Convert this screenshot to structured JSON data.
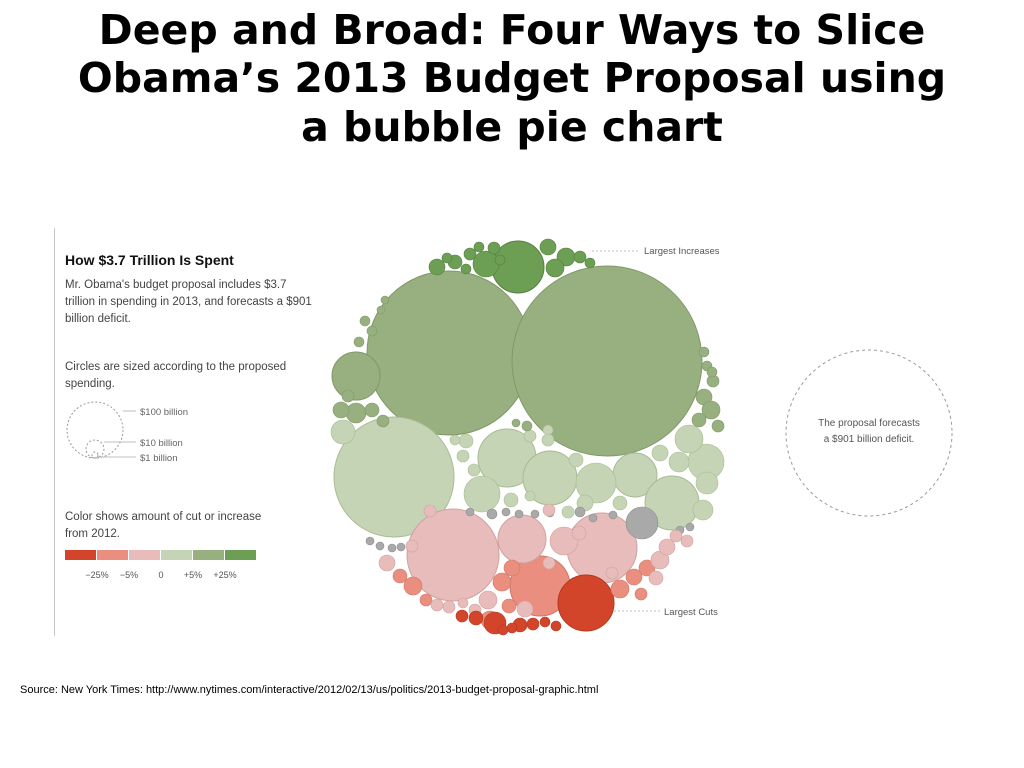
{
  "title_lines": [
    "Deep and Broad: Four Ways to Slice",
    "Obama’s 2013 Budget Proposal using",
    "a bubble pie chart"
  ],
  "panel": {
    "heading": "How $3.7 Trillion Is Spent",
    "intro": "Mr. Obama's budget proposal includes $3.7 trillion in spending in 2013, and forecasts a $901 billion deficit.",
    "size_note": "Circles are sized according to the proposed spending.",
    "size_legend": [
      "$100 billion",
      "$10 billion",
      "$1 billion"
    ],
    "color_note": "Color shows amount of cut or increase from 2012.",
    "color_legend": {
      "colors": [
        "#d2452b",
        "#ea8f7f",
        "#e7bcba",
        "#c5d4b4",
        "#98b07f",
        "#6c9e54"
      ],
      "ticks": [
        "−25%",
        "−5%",
        "0",
        "+5%",
        "+25%"
      ]
    }
  },
  "annotations": {
    "largest_increases": "Largest Increases",
    "largest_cuts": "Largest Cuts",
    "deficit": [
      "The proposal forecasts",
      "a $901 billion deficit."
    ]
  },
  "chart_data": {
    "type": "bubble",
    "title": "How $3.7 Trillion Is Spent",
    "total_spending": "$3.7 trillion",
    "deficit": "$901 billion",
    "color_scale_ticks": [
      "−25%",
      "−5%",
      "0",
      "+5%",
      "+25%"
    ]
  },
  "source": "Source: New York Times: http://www.nytimes.com/interactive/2012/02/13/us/politics/2013-budget-proposal-graphic.html"
}
